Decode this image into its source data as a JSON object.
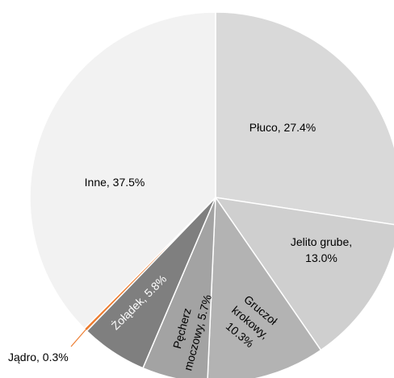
{
  "chart_data": {
    "type": "pie",
    "title": "",
    "start": "top",
    "direction": "clockwise",
    "slices": [
      {
        "name": "Płuco",
        "value": 27.4,
        "label_lines": [
          "Płuco, 27.4%"
        ],
        "color": "#d9d9d9",
        "label_color": "#000000"
      },
      {
        "name": "Jelito grube",
        "value": 13.0,
        "label_lines": [
          "Jelito grube,",
          "13.0%"
        ],
        "color": "#cfcfcf",
        "label_color": "#000000"
      },
      {
        "name": "Gruczoł krokowy",
        "value": 10.3,
        "label_lines": [
          "Gruczoł",
          "krokowy,",
          "10.3%"
        ],
        "color": "#b3b3b3",
        "label_color": "#000000"
      },
      {
        "name": "Pęcherz moczowy",
        "value": 5.7,
        "label_lines": [
          "Pęcherz",
          "moczowy, 5.7%"
        ],
        "color": "#a3a3a3",
        "label_color": "#000000"
      },
      {
        "name": "Żołądek",
        "value": 5.8,
        "label_lines": [
          "Żołądek, 5.8%"
        ],
        "color": "#7f7f7f",
        "label_color": "#ffffff"
      },
      {
        "name": "Jądro",
        "value": 0.3,
        "label_lines": [
          "Jądro, 0.3%"
        ],
        "color": "#ed7d31",
        "label_color": "#000000"
      },
      {
        "name": "Inne",
        "value": 37.5,
        "label_lines": [
          "Inne, 37.5%"
        ],
        "color": "#f2f2f2",
        "label_color": "#000000"
      }
    ]
  }
}
